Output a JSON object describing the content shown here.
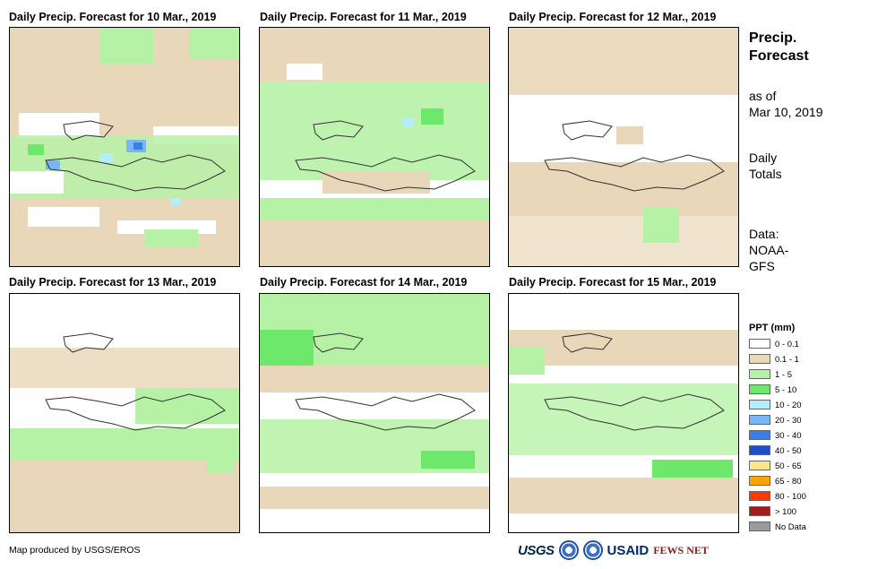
{
  "panels": [
    {
      "title": "Daily Precip. Forecast for 10 Mar., 2019"
    },
    {
      "title": "Daily Precip. Forecast for 11 Mar., 2019"
    },
    {
      "title": "Daily Precip. Forecast for 12 Mar., 2019"
    },
    {
      "title": "Daily Precip. Forecast for 13 Mar., 2019"
    },
    {
      "title": "Daily Precip. Forecast for 14 Mar., 2019"
    },
    {
      "title": "Daily Precip. Forecast for 15 Mar., 2019"
    }
  ],
  "side": {
    "title_line1": "Precip.",
    "title_line2": "Forecast",
    "asof_line1": "as of",
    "asof_line2": "Mar 10, 2019",
    "totals_line1": "Daily",
    "totals_line2": "Totals",
    "data_line1": "Data:",
    "data_line2": "NOAA-",
    "data_line3": "GFS"
  },
  "legend": {
    "title": "PPT (mm)",
    "items": [
      {
        "label": "0 - 0.1",
        "color": "#ffffff"
      },
      {
        "label": "0.1 - 1",
        "color": "#e8d7b8"
      },
      {
        "label": "1 - 5",
        "color": "#b6f2a6"
      },
      {
        "label": "5 - 10",
        "color": "#6ee86a"
      },
      {
        "label": "10 - 20",
        "color": "#b4eefc"
      },
      {
        "label": "20 - 30",
        "color": "#7ab6f4"
      },
      {
        "label": "30 - 40",
        "color": "#3a7ee8"
      },
      {
        "label": "40 - 50",
        "color": "#1f4fc8"
      },
      {
        "label": "50 - 65",
        "color": "#fde58a"
      },
      {
        "label": "65 - 80",
        "color": "#ffa500"
      },
      {
        "label": "80 - 100",
        "color": "#ff3a00"
      },
      {
        "label": "> 100",
        "color": "#a31c1c"
      },
      {
        "label": "No Data",
        "color": "#9a9a9a"
      }
    ]
  },
  "footer": {
    "credit": "Map produced by USGS/EROS"
  },
  "logos": {
    "usgs": "USGS",
    "usaid": "USAID",
    "fews": "FEWS NET"
  }
}
